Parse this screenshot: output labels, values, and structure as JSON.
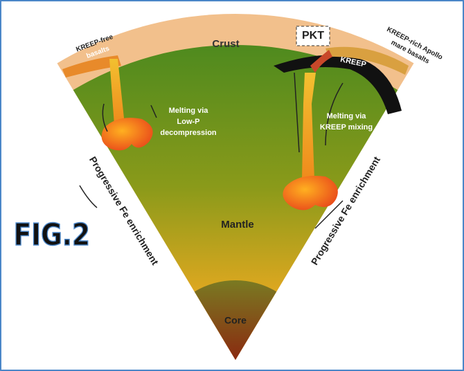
{
  "figure_label": "FIG.2",
  "labels": {
    "crust": "Crust",
    "pkt": "PKT",
    "kreep": "KREEP",
    "kreep_free_basalts": [
      "KREEP-free",
      "basalts"
    ],
    "kreep_rich_basalts": [
      "KREEP-rich Apollo",
      "mare basalts"
    ],
    "melting_low_p": [
      "Melting via",
      "Low-P",
      "decompression"
    ],
    "melting_kreep": [
      "Melting via",
      "KREEP mixing"
    ],
    "left_enrichment": "Progressive Fe enrichment",
    "right_enrichment": "Progressive Fe enrichment",
    "mantle": "Mantle",
    "core": "Core"
  }
}
